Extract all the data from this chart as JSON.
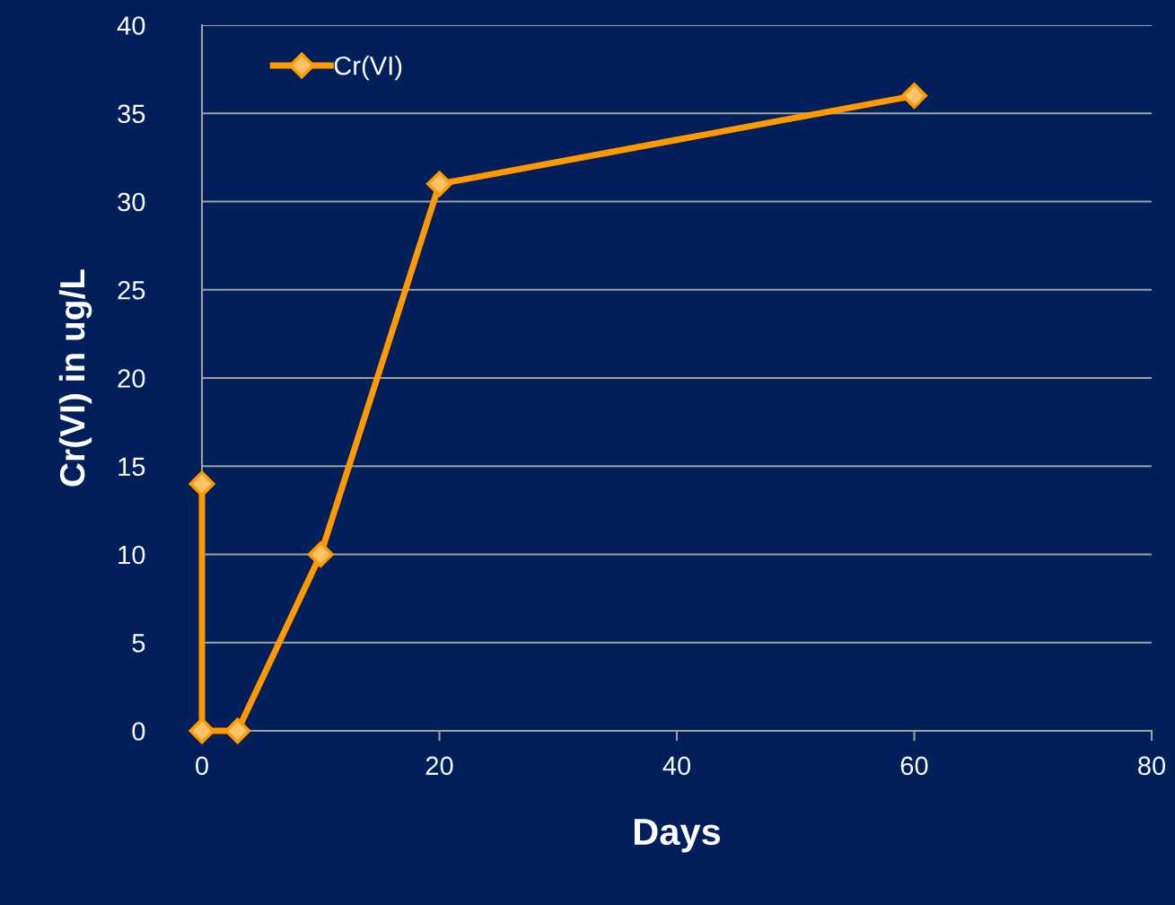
{
  "chart_data": {
    "type": "line",
    "xlabel": "Days",
    "ylabel": "Cr(VI) in ug/L",
    "x": [
      0,
      0,
      3,
      10,
      20,
      60
    ],
    "series": [
      {
        "name": "Cr(VI)",
        "color": "#ff9900",
        "values": [
          14,
          0,
          0,
          10,
          31,
          36
        ]
      }
    ],
    "xlim": [
      0,
      80
    ],
    "xticks": [
      0,
      20,
      40,
      60,
      80
    ],
    "ylim": [
      0,
      40
    ],
    "yticks": [
      0,
      5,
      10,
      15,
      20,
      25,
      30,
      35,
      40
    ],
    "grid": "y",
    "legend": "top left",
    "marker": "diamond",
    "line_style": "solid"
  }
}
